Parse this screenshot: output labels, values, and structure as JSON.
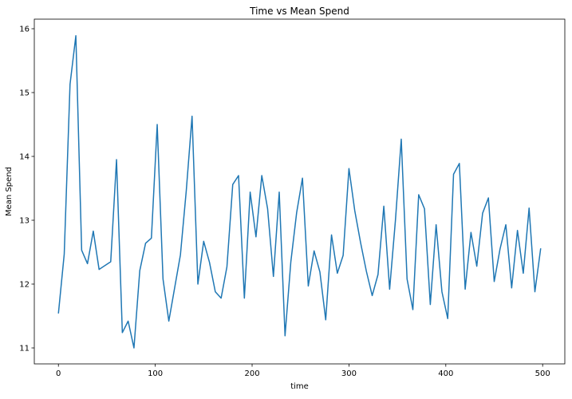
{
  "chart_data": {
    "type": "line",
    "title": "Time vs Mean Spend",
    "xlabel": "time",
    "ylabel": "Mean Spend",
    "xlim": [
      -24.9,
      522.9
    ],
    "ylim": [
      10.75,
      16.15
    ],
    "x_ticks": [
      0,
      100,
      200,
      300,
      400,
      500
    ],
    "y_ticks": [
      11,
      12,
      13,
      14,
      15,
      16
    ],
    "grid": false,
    "legend": "none",
    "series": [
      {
        "color": "#1f77b4",
        "x": [
          0,
          6,
          12,
          18,
          24,
          30,
          36,
          42,
          54,
          60,
          66,
          72,
          78,
          84,
          90,
          96,
          102,
          108,
          114,
          126,
          132,
          138,
          144,
          150,
          156,
          162,
          168,
          174,
          180,
          186,
          192,
          198,
          204,
          210,
          216,
          222,
          228,
          234,
          240,
          246,
          252,
          258,
          264,
          270,
          276,
          282,
          288,
          294,
          300,
          306,
          312,
          318,
          324,
          330,
          336,
          342,
          348,
          354,
          360,
          366,
          372,
          378,
          384,
          390,
          396,
          402,
          408,
          414,
          420,
          426,
          432,
          438,
          444,
          450,
          456,
          462,
          468,
          474,
          480,
          486,
          492,
          498
        ],
        "y": [
          11.54,
          12.47,
          15.13,
          15.89,
          12.53,
          12.32,
          12.83,
          12.23,
          12.35,
          13.95,
          11.24,
          11.42,
          11.0,
          12.21,
          12.64,
          12.72,
          14.5,
          12.08,
          11.42,
          12.46,
          13.46,
          14.63,
          12.0,
          12.67,
          12.34,
          11.88,
          11.78,
          12.27,
          13.56,
          13.7,
          11.78,
          13.44,
          12.74,
          13.7,
          13.18,
          12.12,
          13.44,
          11.19,
          12.35,
          13.12,
          13.66,
          11.97,
          12.52,
          12.19,
          11.44,
          12.77,
          12.17,
          12.45,
          13.81,
          13.15,
          12.65,
          12.2,
          11.82,
          12.15,
          13.22,
          11.92,
          13.0,
          14.27,
          12.08,
          11.6,
          13.4,
          13.18,
          11.68,
          12.93,
          11.88,
          11.46,
          13.72,
          13.89,
          11.92,
          12.81,
          12.28,
          13.11,
          13.35,
          12.04,
          12.55,
          12.93,
          11.94,
          12.84,
          12.17,
          13.19,
          11.88,
          12.56
        ]
      }
    ]
  }
}
